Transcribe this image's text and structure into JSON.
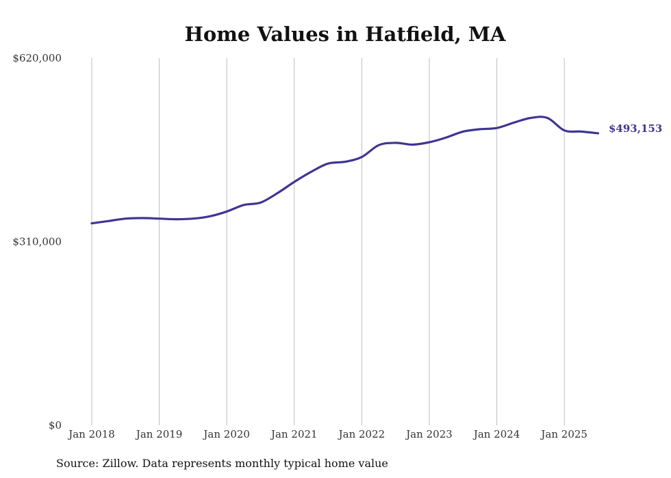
{
  "chart_data": {
    "type": "line",
    "title": "Home Values in Hatfield, MA",
    "xlabel": "",
    "ylabel": "",
    "ylim": [
      0,
      620000
    ],
    "y_ticks": [
      "$0",
      "$310,000",
      "$620,000"
    ],
    "x_ticks": [
      "Jan 2018",
      "Jan 2019",
      "Jan 2020",
      "Jan 2021",
      "Jan 2022",
      "Jan 2023",
      "Jan 2024",
      "Jan 2025"
    ],
    "grid": "vertical",
    "end_label": "$493,153",
    "line_color": "#3f3591",
    "series": [
      {
        "x": [
          "2018-01",
          "2018-04",
          "2018-07",
          "2018-10",
          "2019-01",
          "2019-04",
          "2019-07",
          "2019-10",
          "2020-01",
          "2020-04",
          "2020-07",
          "2020-10",
          "2021-01",
          "2021-04",
          "2021-07",
          "2021-10",
          "2022-01",
          "2022-04",
          "2022-07",
          "2022-10",
          "2023-01",
          "2023-04",
          "2023-07",
          "2023-10",
          "2024-01",
          "2024-04",
          "2024-07",
          "2024-10",
          "2025-01",
          "2025-04",
          "2025-07"
        ],
        "y": [
          341000,
          345000,
          349000,
          350000,
          349000,
          348000,
          349000,
          353000,
          361000,
          372000,
          376000,
          392000,
          411000,
          428000,
          442000,
          445000,
          453000,
          473000,
          477000,
          474000,
          478000,
          486000,
          496000,
          500000,
          502000,
          511000,
          519000,
          519000,
          498000,
          496000,
          493153
        ]
      }
    ],
    "source": "Source: Zillow. Data represents monthly typical home value"
  }
}
